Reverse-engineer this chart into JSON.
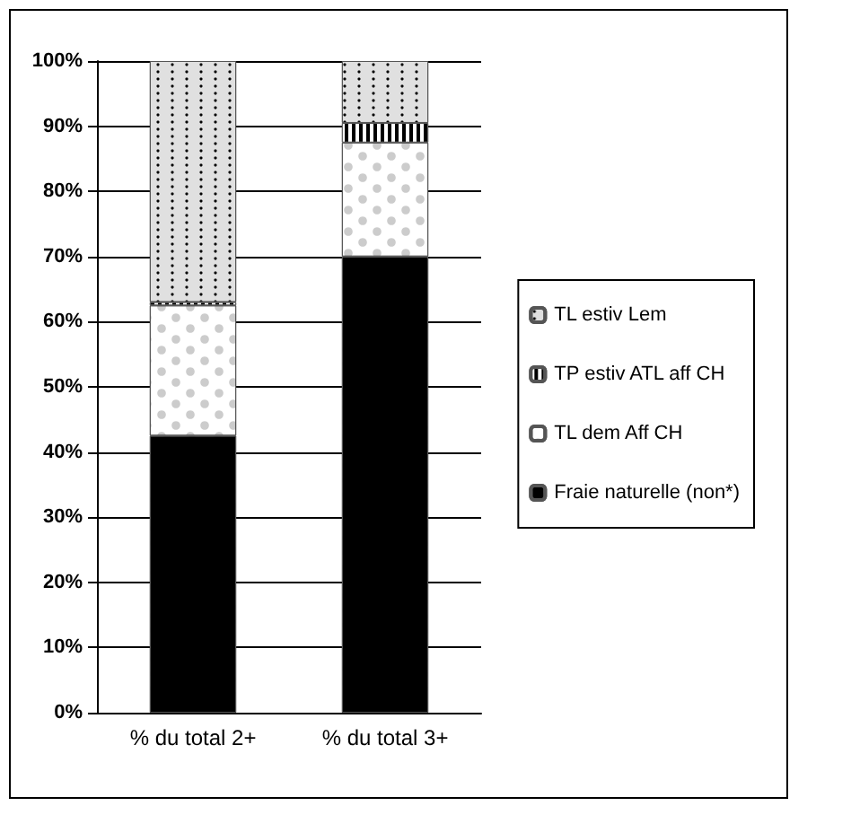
{
  "chart_data": {
    "type": "bar",
    "stacked": true,
    "categories": [
      "% du total 2+",
      "% du total 3+"
    ],
    "series": [
      {
        "name": "Fraie naturelle (non*)",
        "color": "#000000",
        "values": [
          42.5,
          70
        ]
      },
      {
        "name": "TL dem Aff CH",
        "color": "#ffffff",
        "values": [
          20,
          17.5
        ]
      },
      {
        "name": "TP estiv ATL aff CH",
        "color": "#000000",
        "values": [
          0.5,
          3
        ]
      },
      {
        "name": "TL estiv Lem",
        "color": "#e0e0e0",
        "values": [
          37,
          9.5
        ]
      }
    ],
    "ylim": [
      0,
      100
    ],
    "yticks": [
      {
        "value": 0,
        "label": "0%"
      },
      {
        "value": 10,
        "label": "10%"
      },
      {
        "value": 20,
        "label": "20%"
      },
      {
        "value": 30,
        "label": "30%"
      },
      {
        "value": 40,
        "label": "40%"
      },
      {
        "value": 50,
        "label": "50%"
      },
      {
        "value": 60,
        "label": "60%"
      },
      {
        "value": 70,
        "label": "70%"
      },
      {
        "value": 80,
        "label": "80%"
      },
      {
        "value": 90,
        "label": "90%"
      },
      {
        "value": 100,
        "label": "100%"
      }
    ],
    "grid": "y",
    "legend": "right"
  }
}
